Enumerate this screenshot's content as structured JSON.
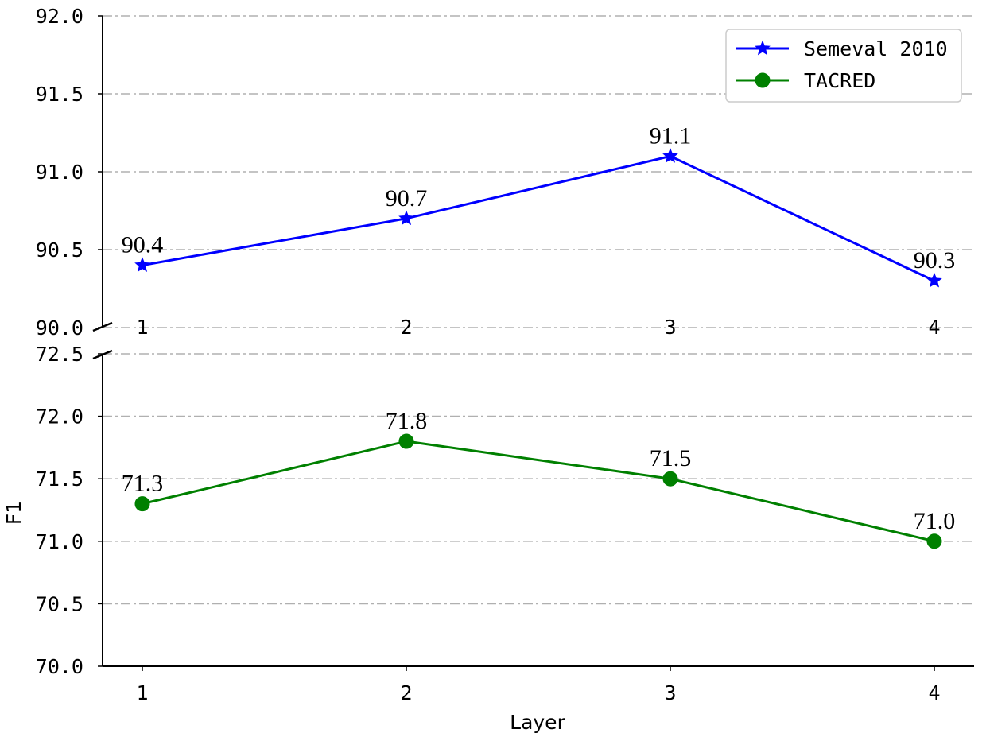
{
  "chart_data": {
    "type": "line",
    "xlabel": "Layer",
    "ylabel": "F1",
    "x": [
      1,
      2,
      3,
      4
    ],
    "x_tick_labels": [
      "1",
      "2",
      "3",
      "4"
    ],
    "broken_y_axis": true,
    "grid": "horizontal dash-dot",
    "legend_position": "top-right",
    "panels": [
      {
        "name": "upper",
        "ylim": [
          90.0,
          92.0
        ],
        "y_ticks": [
          90.0,
          90.5,
          91.0,
          91.5,
          92.0
        ],
        "y_tick_labels": [
          "90.0",
          "90.5",
          "91.0",
          "91.5",
          "92.0"
        ],
        "series": [
          {
            "name": "Semeval 2010",
            "color": "#0000ff",
            "marker": "star",
            "values": [
              90.4,
              90.7,
              91.1,
              90.3
            ],
            "labels": [
              "90.4",
              "90.7",
              "91.1",
              "90.3"
            ]
          }
        ]
      },
      {
        "name": "lower",
        "ylim": [
          70.0,
          72.5
        ],
        "y_ticks": [
          70.0,
          70.5,
          71.0,
          71.5,
          72.0,
          72.5
        ],
        "y_tick_labels": [
          "70.0",
          "70.5",
          "71.0",
          "71.5",
          "72.0",
          "72.5"
        ],
        "series": [
          {
            "name": "TACRED",
            "color": "#008000",
            "marker": "circle",
            "values": [
              71.3,
              71.8,
              71.5,
              71.0
            ],
            "labels": [
              "71.3",
              "71.8",
              "71.5",
              "71.0"
            ]
          }
        ]
      }
    ],
    "legend": [
      {
        "name": "Semeval 2010",
        "color": "#0000ff",
        "marker": "star"
      },
      {
        "name": "TACRED",
        "color": "#008000",
        "marker": "circle"
      }
    ]
  }
}
